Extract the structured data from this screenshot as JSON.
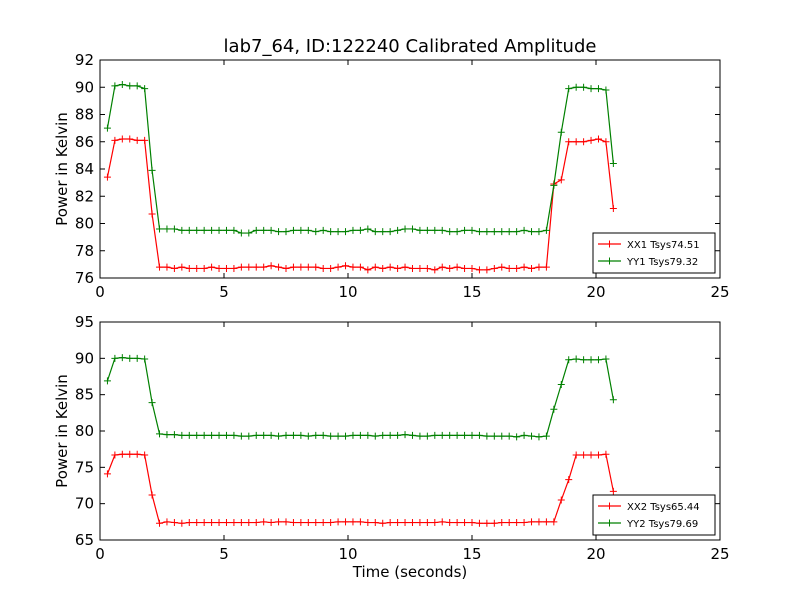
{
  "figure": {
    "title": "lab7_64, ID:122240 Calibrated Amplitude"
  },
  "chart_data": [
    {
      "type": "line",
      "title": "lab7_64, ID:122240 Calibrated Amplitude",
      "xlabel": "",
      "ylabel": "Power in Kelvin",
      "xlim": [
        0,
        25
      ],
      "ylim": [
        76,
        92
      ],
      "x_ticks": [
        0,
        5,
        10,
        15,
        20,
        25
      ],
      "y_ticks": [
        76,
        78,
        80,
        82,
        84,
        86,
        88,
        90,
        92
      ],
      "grid": false,
      "legend_position": "lower-right",
      "marker": "+",
      "series": [
        {
          "name": "XX1 Tsys74.51",
          "color": "#ff0000",
          "x": [
            0.3,
            0.6,
            0.9,
            1.2,
            1.5,
            1.8,
            2.1,
            2.4,
            2.7,
            3.0,
            3.3,
            3.6,
            3.9,
            4.2,
            4.5,
            4.8,
            5.1,
            5.4,
            5.7,
            6.0,
            6.3,
            6.6,
            6.9,
            7.2,
            7.5,
            7.8,
            8.1,
            8.4,
            8.7,
            9.0,
            9.3,
            9.6,
            9.9,
            10.2,
            10.5,
            10.8,
            11.1,
            11.4,
            11.7,
            12.0,
            12.3,
            12.6,
            12.9,
            13.2,
            13.5,
            13.8,
            14.1,
            14.4,
            14.7,
            15.0,
            15.3,
            15.6,
            15.9,
            16.2,
            16.5,
            16.8,
            17.1,
            17.4,
            17.7,
            18.0,
            18.3,
            18.6,
            18.9,
            19.2,
            19.5,
            19.8,
            20.1,
            20.4,
            20.7
          ],
          "values": [
            83.4,
            86.1,
            86.2,
            86.2,
            86.1,
            86.1,
            80.7,
            76.8,
            76.8,
            76.7,
            76.8,
            76.7,
            76.7,
            76.7,
            76.8,
            76.7,
            76.7,
            76.7,
            76.8,
            76.8,
            76.8,
            76.8,
            76.9,
            76.8,
            76.7,
            76.8,
            76.8,
            76.8,
            76.8,
            76.7,
            76.7,
            76.8,
            76.9,
            76.8,
            76.8,
            76.6,
            76.8,
            76.7,
            76.8,
            76.7,
            76.8,
            76.7,
            76.7,
            76.7,
            76.6,
            76.8,
            76.7,
            76.8,
            76.7,
            76.7,
            76.6,
            76.6,
            76.7,
            76.8,
            76.7,
            76.7,
            76.8,
            76.7,
            76.8,
            76.8,
            82.9,
            83.2,
            86.0,
            86.0,
            86.0,
            86.1,
            86.2,
            86.0,
            81.1
          ]
        },
        {
          "name": "YY1 Tsys79.32",
          "color": "#008000",
          "x": [
            0.3,
            0.6,
            0.9,
            1.2,
            1.5,
            1.8,
            2.1,
            2.4,
            2.7,
            3.0,
            3.3,
            3.6,
            3.9,
            4.2,
            4.5,
            4.8,
            5.1,
            5.4,
            5.7,
            6.0,
            6.3,
            6.6,
            6.9,
            7.2,
            7.5,
            7.8,
            8.1,
            8.4,
            8.7,
            9.0,
            9.3,
            9.6,
            9.9,
            10.2,
            10.5,
            10.8,
            11.1,
            11.4,
            11.7,
            12.0,
            12.3,
            12.6,
            12.9,
            13.2,
            13.5,
            13.8,
            14.1,
            14.4,
            14.7,
            15.0,
            15.3,
            15.6,
            15.9,
            16.2,
            16.5,
            16.8,
            17.1,
            17.4,
            17.7,
            18.0,
            18.3,
            18.6,
            18.9,
            19.2,
            19.5,
            19.8,
            20.1,
            20.4,
            20.7
          ],
          "values": [
            87.0,
            90.1,
            90.2,
            90.1,
            90.1,
            89.9,
            83.9,
            79.6,
            79.6,
            79.6,
            79.5,
            79.5,
            79.5,
            79.5,
            79.5,
            79.5,
            79.5,
            79.5,
            79.3,
            79.3,
            79.5,
            79.5,
            79.5,
            79.4,
            79.4,
            79.5,
            79.5,
            79.5,
            79.4,
            79.5,
            79.4,
            79.4,
            79.4,
            79.5,
            79.5,
            79.6,
            79.4,
            79.4,
            79.4,
            79.5,
            79.6,
            79.6,
            79.5,
            79.5,
            79.5,
            79.5,
            79.4,
            79.4,
            79.5,
            79.5,
            79.4,
            79.4,
            79.4,
            79.4,
            79.4,
            79.4,
            79.5,
            79.4,
            79.4,
            79.5,
            82.8,
            86.7,
            89.9,
            90.0,
            90.0,
            89.9,
            89.9,
            89.8,
            84.4
          ]
        }
      ]
    },
    {
      "type": "line",
      "title": "",
      "xlabel": "Time (seconds)",
      "ylabel": "Power in Kelvin",
      "xlim": [
        0,
        25
      ],
      "ylim": [
        65,
        95
      ],
      "x_ticks": [
        0,
        5,
        10,
        15,
        20,
        25
      ],
      "y_ticks": [
        65,
        70,
        75,
        80,
        85,
        90,
        95
      ],
      "grid": false,
      "legend_position": "lower-right",
      "marker": "+",
      "series": [
        {
          "name": "XX2 Tsys65.44",
          "color": "#ff0000",
          "x": [
            0.3,
            0.6,
            0.9,
            1.2,
            1.5,
            1.8,
            2.1,
            2.4,
            2.7,
            3.0,
            3.3,
            3.6,
            3.9,
            4.2,
            4.5,
            4.8,
            5.1,
            5.4,
            5.7,
            6.0,
            6.3,
            6.6,
            6.9,
            7.2,
            7.5,
            7.8,
            8.1,
            8.4,
            8.7,
            9.0,
            9.3,
            9.6,
            9.9,
            10.2,
            10.5,
            10.8,
            11.1,
            11.4,
            11.7,
            12.0,
            12.3,
            12.6,
            12.9,
            13.2,
            13.5,
            13.8,
            14.1,
            14.4,
            14.7,
            15.0,
            15.3,
            15.6,
            15.9,
            16.2,
            16.5,
            16.8,
            17.1,
            17.4,
            17.7,
            18.0,
            18.3,
            18.6,
            18.9,
            19.2,
            19.5,
            19.8,
            20.1,
            20.4,
            20.7
          ],
          "values": [
            74.1,
            76.7,
            76.8,
            76.8,
            76.8,
            76.7,
            71.2,
            67.3,
            67.5,
            67.4,
            67.3,
            67.4,
            67.4,
            67.4,
            67.4,
            67.4,
            67.4,
            67.4,
            67.4,
            67.4,
            67.4,
            67.5,
            67.4,
            67.5,
            67.5,
            67.4,
            67.4,
            67.4,
            67.4,
            67.4,
            67.4,
            67.5,
            67.5,
            67.5,
            67.5,
            67.4,
            67.4,
            67.3,
            67.4,
            67.4,
            67.4,
            67.4,
            67.4,
            67.4,
            67.4,
            67.5,
            67.4,
            67.4,
            67.4,
            67.4,
            67.3,
            67.3,
            67.3,
            67.4,
            67.4,
            67.4,
            67.4,
            67.5,
            67.5,
            67.5,
            67.5,
            70.5,
            73.3,
            76.7,
            76.7,
            76.7,
            76.7,
            76.8,
            71.7
          ]
        },
        {
          "name": "YY2 Tsys79.69",
          "color": "#008000",
          "x": [
            0.3,
            0.6,
            0.9,
            1.2,
            1.5,
            1.8,
            2.1,
            2.4,
            2.7,
            3.0,
            3.3,
            3.6,
            3.9,
            4.2,
            4.5,
            4.8,
            5.1,
            5.4,
            5.7,
            6.0,
            6.3,
            6.6,
            6.9,
            7.2,
            7.5,
            7.8,
            8.1,
            8.4,
            8.7,
            9.0,
            9.3,
            9.6,
            9.9,
            10.2,
            10.5,
            10.8,
            11.1,
            11.4,
            11.7,
            12.0,
            12.3,
            12.6,
            12.9,
            13.2,
            13.5,
            13.8,
            14.1,
            14.4,
            14.7,
            15.0,
            15.3,
            15.6,
            15.9,
            16.2,
            16.5,
            16.8,
            17.1,
            17.4,
            17.7,
            18.0,
            18.3,
            18.6,
            18.9,
            19.2,
            19.5,
            19.8,
            20.1,
            20.4,
            20.7
          ],
          "values": [
            86.9,
            90.0,
            90.1,
            90.0,
            90.0,
            89.9,
            83.9,
            79.6,
            79.5,
            79.5,
            79.4,
            79.4,
            79.4,
            79.4,
            79.4,
            79.4,
            79.4,
            79.4,
            79.3,
            79.3,
            79.4,
            79.4,
            79.4,
            79.3,
            79.4,
            79.4,
            79.4,
            79.3,
            79.4,
            79.4,
            79.3,
            79.3,
            79.3,
            79.4,
            79.4,
            79.4,
            79.3,
            79.4,
            79.4,
            79.4,
            79.5,
            79.4,
            79.3,
            79.3,
            79.4,
            79.4,
            79.4,
            79.4,
            79.4,
            79.4,
            79.4,
            79.3,
            79.3,
            79.3,
            79.3,
            79.2,
            79.4,
            79.3,
            79.2,
            79.3,
            83.0,
            86.4,
            89.8,
            89.9,
            89.8,
            89.8,
            89.8,
            89.9,
            84.3
          ]
        }
      ]
    }
  ]
}
